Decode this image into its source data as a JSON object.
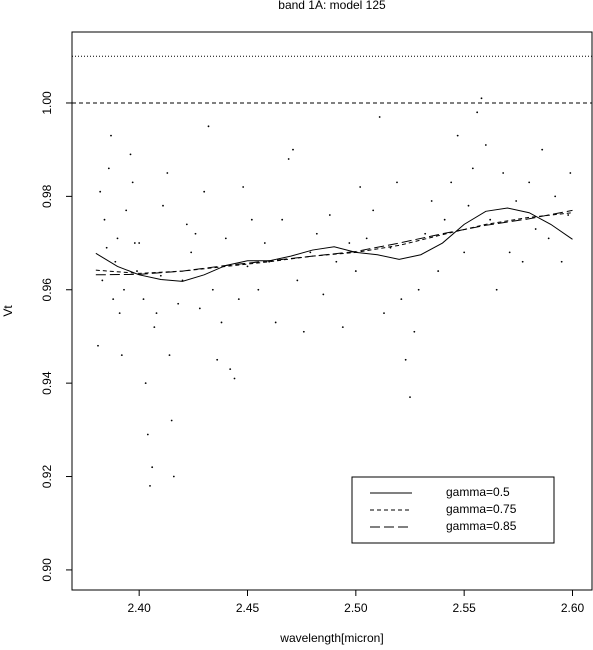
{
  "chart_data": {
    "type": "scatter-smooth",
    "title": "band 1A: model 125",
    "x_label": "wavelength[micron]",
    "y_label": "Vt",
    "xlim": [
      2.369,
      2.609
    ],
    "ylim": [
      0.8957,
      1.0152
    ],
    "xticks": [
      {
        "value": 2.4,
        "label": "2.40"
      },
      2.45,
      {
        "value": 2.5,
        "label": "2.50"
      },
      2.55,
      {
        "value": 2.6,
        "label": "2.60"
      }
    ],
    "yticks": [
      {
        "value": 0.9,
        "label": "0.90"
      },
      0.92,
      0.94,
      0.96,
      0.98,
      {
        "value": 1.0,
        "label": "1.00"
      }
    ],
    "hlines": [
      {
        "y": 1.01,
        "style": "dotted"
      },
      {
        "y": 1.0,
        "style": "dashed"
      }
    ],
    "points": {
      "color": "#000000",
      "x": [
        2.381,
        2.382,
        2.383,
        2.384,
        2.385,
        2.386,
        2.387,
        2.388,
        2.389,
        2.39,
        2.391,
        2.392,
        2.393,
        2.394,
        2.396,
        2.397,
        2.398,
        2.399,
        2.4,
        2.402,
        2.403,
        2.404,
        2.405,
        2.406,
        2.407,
        2.408,
        2.41,
        2.411,
        2.413,
        2.414,
        2.415,
        2.416,
        2.418,
        2.42,
        2.422,
        2.424,
        2.426,
        2.428,
        2.43,
        2.432,
        2.434,
        2.436,
        2.438,
        2.44,
        2.442,
        2.444,
        2.446,
        2.448,
        2.45,
        2.452,
        2.455,
        2.458,
        2.46,
        2.463,
        2.466,
        2.469,
        2.471,
        2.473,
        2.476,
        2.479,
        2.482,
        2.485,
        2.488,
        2.491,
        2.494,
        2.497,
        2.5,
        2.502,
        2.505,
        2.508,
        2.511,
        2.513,
        2.516,
        2.519,
        2.521,
        2.523,
        2.525,
        2.527,
        2.529,
        2.532,
        2.535,
        2.538,
        2.541,
        2.544,
        2.547,
        2.55,
        2.552,
        2.554,
        2.556,
        2.558,
        2.56,
        2.562,
        2.565,
        2.568,
        2.571,
        2.574,
        2.577,
        2.58,
        2.583,
        2.586,
        2.589,
        2.592,
        2.595,
        2.598,
        2.599
      ],
      "y": [
        0.948,
        0.981,
        0.962,
        0.975,
        0.969,
        0.986,
        0.993,
        0.958,
        0.966,
        0.971,
        0.955,
        0.946,
        0.96,
        0.977,
        0.989,
        0.983,
        0.97,
        0.964,
        0.97,
        0.958,
        0.94,
        0.929,
        0.918,
        0.922,
        0.952,
        0.955,
        0.963,
        0.978,
        0.985,
        0.946,
        0.932,
        0.92,
        0.957,
        0.962,
        0.974,
        0.968,
        0.972,
        0.956,
        0.981,
        0.995,
        0.96,
        0.945,
        0.953,
        0.971,
        0.943,
        0.941,
        0.958,
        0.982,
        0.965,
        0.975,
        0.96,
        0.97,
        0.966,
        0.953,
        0.975,
        0.988,
        0.99,
        0.962,
        0.951,
        0.968,
        0.972,
        0.959,
        0.976,
        0.966,
        0.952,
        0.97,
        0.964,
        0.982,
        0.971,
        0.977,
        0.997,
        0.955,
        0.969,
        0.983,
        0.958,
        0.945,
        0.937,
        0.951,
        0.96,
        0.972,
        0.979,
        0.964,
        0.975,
        0.983,
        0.993,
        0.968,
        0.978,
        0.986,
        0.998,
        1.001,
        0.991,
        0.975,
        0.96,
        0.985,
        0.968,
        0.979,
        0.966,
        0.983,
        0.973,
        0.99,
        0.971,
        0.98,
        0.966,
        0.976,
        0.985
      ]
    },
    "series": [
      {
        "name": "gamma=0.5",
        "color": "#000000",
        "dash": "solid",
        "x": [
          2.38,
          2.39,
          2.4,
          2.41,
          2.42,
          2.43,
          2.44,
          2.45,
          2.46,
          2.47,
          2.48,
          2.49,
          2.5,
          2.51,
          2.52,
          2.53,
          2.54,
          2.55,
          2.56,
          2.57,
          2.58,
          2.59,
          2.6
        ],
        "values": [
          0.9678,
          0.965,
          0.9632,
          0.9622,
          0.9618,
          0.9632,
          0.9652,
          0.9662,
          0.9662,
          0.9672,
          0.9685,
          0.9692,
          0.968,
          0.9675,
          0.9665,
          0.9675,
          0.97,
          0.974,
          0.9768,
          0.9775,
          0.9765,
          0.974,
          0.9708
        ]
      },
      {
        "name": "gamma=0.75",
        "color": "#000000",
        "dash": "dashed",
        "x": [
          2.38,
          2.4,
          2.42,
          2.44,
          2.46,
          2.48,
          2.5,
          2.52,
          2.54,
          2.56,
          2.58,
          2.6
        ],
        "values": [
          0.9642,
          0.9635,
          0.964,
          0.965,
          0.966,
          0.9672,
          0.968,
          0.9695,
          0.9718,
          0.974,
          0.9755,
          0.9765
        ]
      },
      {
        "name": "gamma=0.85",
        "color": "#000000",
        "dash": "longdash",
        "x": [
          2.38,
          2.4,
          2.42,
          2.44,
          2.46,
          2.48,
          2.5,
          2.52,
          2.54,
          2.56,
          2.58,
          2.6
        ],
        "values": [
          0.9632,
          0.9633,
          0.964,
          0.9652,
          0.9662,
          0.9672,
          0.9682,
          0.97,
          0.972,
          0.9738,
          0.9752,
          0.977
        ]
      }
    ],
    "legend": "bottom-right"
  }
}
